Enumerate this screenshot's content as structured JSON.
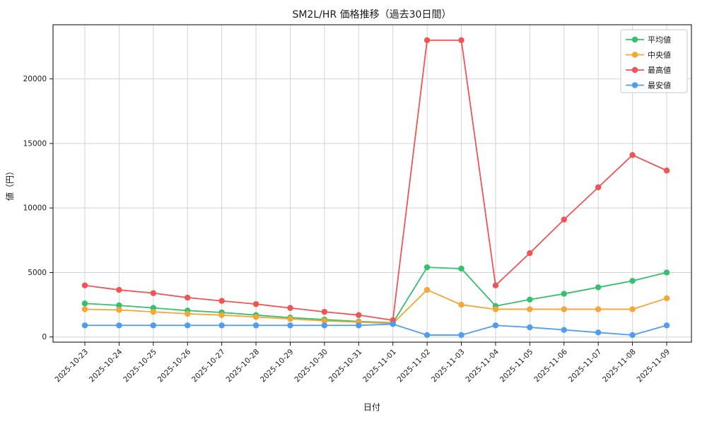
{
  "figure": {
    "title": "SM2L/HR 価格推移（過去30日間）"
  },
  "chart_data": {
    "type": "line",
    "title": "SM2L/HR 価格推移（過去30日間）",
    "xlabel": "日付",
    "ylabel": "値（円）",
    "x": [
      "2025-10-23",
      "2025-10-24",
      "2025-10-25",
      "2025-10-26",
      "2025-10-27",
      "2025-10-28",
      "2025-10-29",
      "2025-10-30",
      "2025-10-31",
      "2025-11-01",
      "2025-11-02",
      "2025-11-03",
      "2025-11-04",
      "2025-11-05",
      "2025-11-06",
      "2025-11-07",
      "2025-11-08",
      "2025-11-09"
    ],
    "series": [
      {
        "name": "平均値",
        "color": "#34c06c",
        "values": [
          2600,
          2450,
          2250,
          2050,
          1900,
          1700,
          1500,
          1350,
          1200,
          1100,
          5400,
          5300,
          2400,
          2900,
          3350,
          3850,
          4350,
          5000
        ]
      },
      {
        "name": "中央値",
        "color": "#f7a533",
        "values": [
          2150,
          2100,
          1950,
          1800,
          1700,
          1550,
          1400,
          1250,
          1150,
          1050,
          3650,
          2500,
          2150,
          2150,
          2150,
          2150,
          2150,
          3000
        ]
      },
      {
        "name": "最高値",
        "color": "#f05454",
        "values": [
          4000,
          3650,
          3400,
          3050,
          2800,
          2550,
          2250,
          1950,
          1700,
          1300,
          23000,
          23000,
          4000,
          6500,
          9100,
          11600,
          14100,
          12900
        ]
      },
      {
        "name": "最安値",
        "color": "#4e9df5",
        "values": [
          900,
          900,
          900,
          900,
          900,
          900,
          900,
          900,
          900,
          1000,
          150,
          150,
          900,
          750,
          550,
          350,
          150,
          900
        ]
      }
    ],
    "yticks": [
      0,
      5000,
      10000,
      15000,
      20000
    ],
    "ylim": [
      -400,
      24200
    ],
    "grid": true,
    "legend_position": "upper right"
  }
}
